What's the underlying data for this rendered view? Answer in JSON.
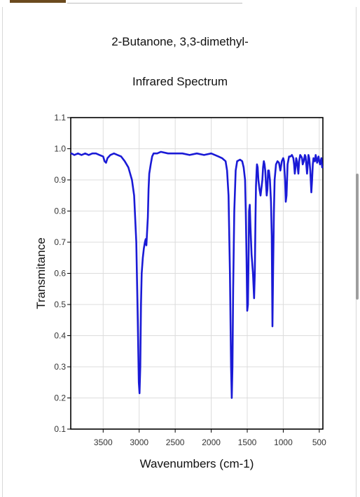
{
  "page": {
    "title_line1": "2-Butanone, 3,3-dimethyl-",
    "title_line2": "Infrared Spectrum"
  },
  "chart_data": {
    "type": "line",
    "title": "2-Butanone, 3,3-dimethyl-",
    "subtitle": "Infrared Spectrum",
    "xlabel": "Wavenumbers (cm-1)",
    "ylabel": "Transmitance",
    "xlim": [
      3950,
      450
    ],
    "ylim": [
      0.1,
      1.1
    ],
    "x_reversed": true,
    "x_ticks": [
      3500,
      3000,
      2500,
      2000,
      1500,
      1000,
      500
    ],
    "y_ticks": [
      0.1,
      0.2,
      0.3,
      0.4,
      0.5,
      0.6,
      0.7,
      0.8,
      0.9,
      1.0,
      1.1
    ],
    "y_tick_labels": [
      "0.1",
      "0.2",
      "0.3",
      "0.4",
      "0.5",
      "0.6",
      "0.7",
      "0.8",
      "0.9",
      "1.0",
      "1.1"
    ],
    "grid": true,
    "line_color": "#1a1ad6",
    "series": [
      {
        "x": [
          3950,
          3900,
          3850,
          3800,
          3750,
          3700,
          3650,
          3600,
          3550,
          3500,
          3480,
          3460,
          3440,
          3400,
          3350,
          3300,
          3250,
          3200,
          3150,
          3100,
          3070,
          3040,
          3020,
          3005,
          2995,
          2985,
          2975,
          2965,
          2950,
          2935,
          2920,
          2910,
          2900,
          2880,
          2870,
          2860,
          2840,
          2820,
          2800,
          2780,
          2750,
          2700,
          2600,
          2500,
          2400,
          2300,
          2200,
          2100,
          2000,
          1900,
          1850,
          1800,
          1780,
          1760,
          1740,
          1725,
          1715,
          1705,
          1695,
          1680,
          1660,
          1640,
          1600,
          1570,
          1550,
          1530,
          1520,
          1510,
          1500,
          1490,
          1480,
          1475,
          1465,
          1455,
          1440,
          1420,
          1405,
          1395,
          1385,
          1378,
          1370,
          1365,
          1355,
          1345,
          1330,
          1315,
          1300,
          1290,
          1280,
          1270,
          1260,
          1250,
          1240,
          1230,
          1220,
          1210,
          1200,
          1185,
          1170,
          1160,
          1150,
          1140,
          1130,
          1120,
          1100,
          1080,
          1060,
          1040,
          1020,
          1000,
          990,
          975,
          965,
          955,
          940,
          920,
          900,
          880,
          860,
          850,
          840,
          830,
          820,
          810,
          800,
          790,
          780,
          765,
          750,
          740,
          730,
          715,
          700,
          690,
          680,
          670,
          660,
          650,
          640,
          625,
          610,
          600,
          590,
          580,
          570,
          560,
          550,
          540,
          530,
          520,
          510,
          500,
          490,
          470,
          460
        ],
        "y": [
          0.985,
          0.98,
          0.985,
          0.98,
          0.985,
          0.98,
          0.985,
          0.985,
          0.98,
          0.975,
          0.96,
          0.955,
          0.97,
          0.98,
          0.985,
          0.98,
          0.975,
          0.96,
          0.94,
          0.9,
          0.85,
          0.7,
          0.45,
          0.25,
          0.215,
          0.3,
          0.5,
          0.6,
          0.65,
          0.68,
          0.7,
          0.71,
          0.69,
          0.78,
          0.87,
          0.92,
          0.95,
          0.975,
          0.985,
          0.985,
          0.985,
          0.99,
          0.985,
          0.985,
          0.985,
          0.98,
          0.985,
          0.98,
          0.985,
          0.975,
          0.97,
          0.96,
          0.93,
          0.85,
          0.6,
          0.3,
          0.2,
          0.3,
          0.55,
          0.8,
          0.93,
          0.96,
          0.965,
          0.96,
          0.94,
          0.9,
          0.8,
          0.65,
          0.48,
          0.5,
          0.68,
          0.8,
          0.82,
          0.75,
          0.66,
          0.6,
          0.52,
          0.6,
          0.78,
          0.88,
          0.93,
          0.95,
          0.94,
          0.9,
          0.87,
          0.85,
          0.88,
          0.9,
          0.94,
          0.96,
          0.95,
          0.93,
          0.89,
          0.85,
          0.87,
          0.93,
          0.93,
          0.9,
          0.83,
          0.72,
          0.43,
          0.62,
          0.8,
          0.9,
          0.95,
          0.96,
          0.955,
          0.93,
          0.96,
          0.97,
          0.96,
          0.9,
          0.83,
          0.85,
          0.95,
          0.975,
          0.975,
          0.98,
          0.97,
          0.95,
          0.92,
          0.94,
          0.97,
          0.96,
          0.94,
          0.92,
          0.96,
          0.98,
          0.975,
          0.97,
          0.95,
          0.96,
          0.98,
          0.975,
          0.95,
          0.92,
          0.95,
          0.98,
          0.97,
          0.93,
          0.86,
          0.9,
          0.95,
          0.97,
          0.96,
          0.96,
          0.98,
          0.97,
          0.955,
          0.965,
          0.975,
          0.96,
          0.95,
          0.97,
          0.94
        ]
      }
    ]
  }
}
